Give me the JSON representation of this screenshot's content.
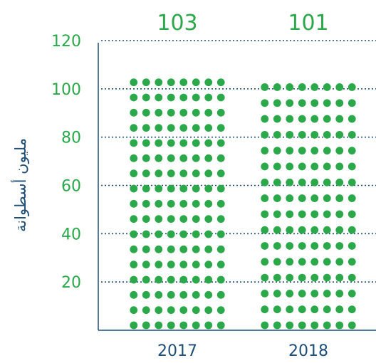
{
  "colors": {
    "accent": "#2ba84a",
    "axis": "#1f4e79",
    "grid": "#1f4e79",
    "background": "#ffffff"
  },
  "chart_data": {
    "type": "bar",
    "style": "dot-matrix",
    "categories": [
      "2017",
      "2018"
    ],
    "values": [
      103,
      101
    ],
    "value_labels": [
      "103",
      "101"
    ],
    "ylabel": "مليون أسطوانة",
    "ylim": [
      0,
      120
    ],
    "yticks": [
      20,
      40,
      60,
      80,
      100,
      120
    ],
    "ytick_labels": [
      "20",
      "40",
      "60",
      "80",
      "100",
      "120"
    ],
    "grid": true,
    "legend": "none"
  }
}
